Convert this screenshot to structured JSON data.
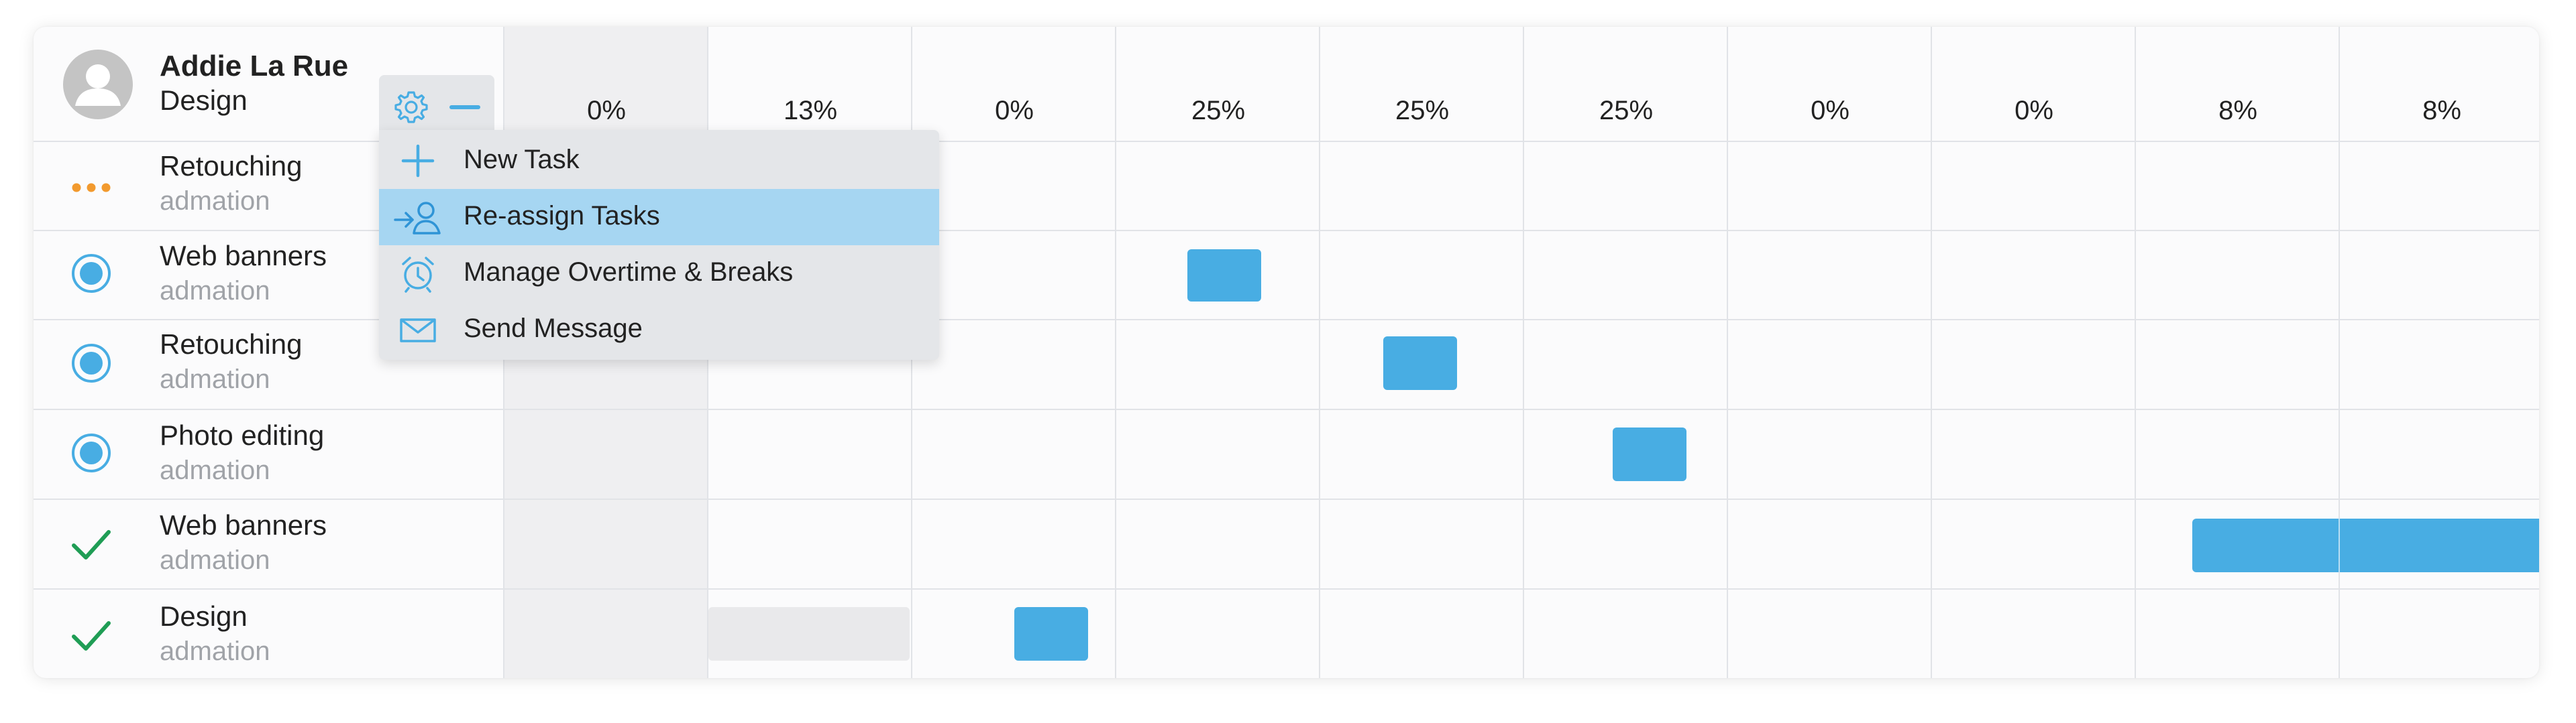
{
  "user": {
    "name": "Addie La Rue",
    "department": "Design"
  },
  "columns": [
    "0%",
    "13%",
    "0%",
    "25%",
    "25%",
    "25%",
    "0%",
    "0%",
    "8%",
    "8%"
  ],
  "rows": [
    {
      "title": "Retouching",
      "client": "admation",
      "status": "pending"
    },
    {
      "title": "Web banners",
      "client": "admation",
      "status": "in-progress"
    },
    {
      "title": "Retouching",
      "client": "admation",
      "status": "in-progress"
    },
    {
      "title": "Photo editing",
      "client": "admation",
      "status": "in-progress"
    },
    {
      "title": "Web banners",
      "client": "admation",
      "status": "done"
    },
    {
      "title": "Design",
      "client": "admation",
      "status": "done"
    }
  ],
  "menu": {
    "items": [
      {
        "label": "New Task",
        "icon": "plus-icon"
      },
      {
        "label": "Re-assign Tasks",
        "icon": "reassign-user-icon",
        "active": true
      },
      {
        "label": "Manage Overtime & Breaks",
        "icon": "alarm-clock-icon"
      },
      {
        "label": "Send Message",
        "icon": "envelope-icon"
      }
    ]
  },
  "colors": {
    "accent": "#48ade3",
    "pending": "#f29a2e",
    "done": "#1f9d55",
    "menu_active": "#a6d6f2"
  }
}
